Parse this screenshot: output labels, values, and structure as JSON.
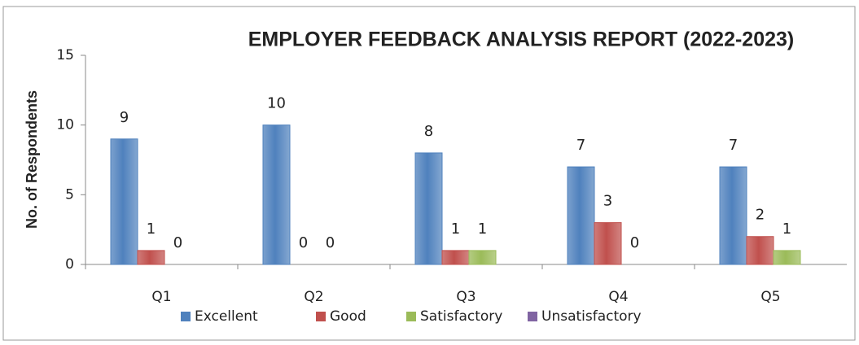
{
  "chart_data": {
    "type": "bar",
    "title": "EMPLOYER FEEDBACK ANALYSIS REPORT (2022-2023)",
    "y_label": "No. of Respondents",
    "categories": [
      "Q1",
      "Q2",
      "Q3",
      "Q4",
      "Q5"
    ],
    "series": [
      {
        "name": "Excellent",
        "color": "#4f81bd",
        "values": [
          9,
          10,
          8,
          7,
          7
        ]
      },
      {
        "name": "Good",
        "color": "#c0504d",
        "values": [
          1,
          0,
          1,
          3,
          2
        ]
      },
      {
        "name": "Satisfactory",
        "color": "#9bbb59",
        "values": [
          0,
          0,
          1,
          0,
          1
        ]
      },
      {
        "name": "Unsatisfactory",
        "color": "#8064a2",
        "values": [
          null,
          null,
          null,
          null,
          null
        ]
      }
    ],
    "ylim": [
      0,
      15
    ],
    "yticks": [
      0,
      5,
      10,
      15
    ],
    "grid": false,
    "legend": "bottom"
  }
}
